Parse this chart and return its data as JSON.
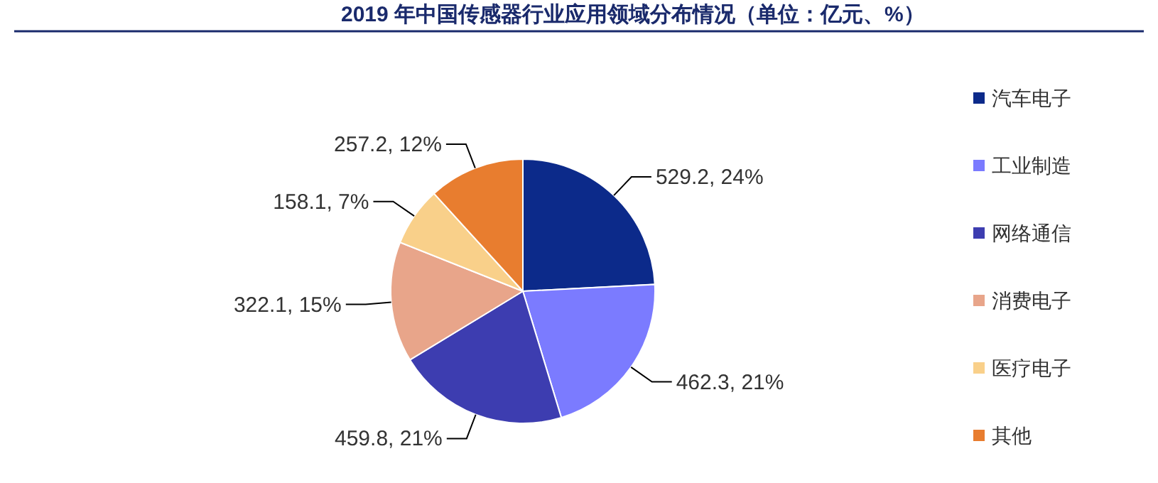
{
  "chart_data": {
    "type": "pie",
    "title": "2019 年中国传感器行业应用领域分布情况（单位：亿元、%）",
    "categories": [
      "汽车电子",
      "工业制造",
      "网络通信",
      "消费电子",
      "医疗电子",
      "其他"
    ],
    "values": [
      529.2,
      462.3,
      459.8,
      322.1,
      158.1,
      257.2
    ],
    "colors": [
      "#0c2a8a",
      "#7b7bff",
      "#3d3db0",
      "#e8a58a",
      "#f9d08a",
      "#e87d2f"
    ],
    "value_labels": [
      "529.2, 24%",
      "462.3, 21%",
      "459.8, 21%",
      "322.1, 15%",
      "158.1, 7%",
      "257.2, 12%"
    ],
    "legend": "right"
  }
}
